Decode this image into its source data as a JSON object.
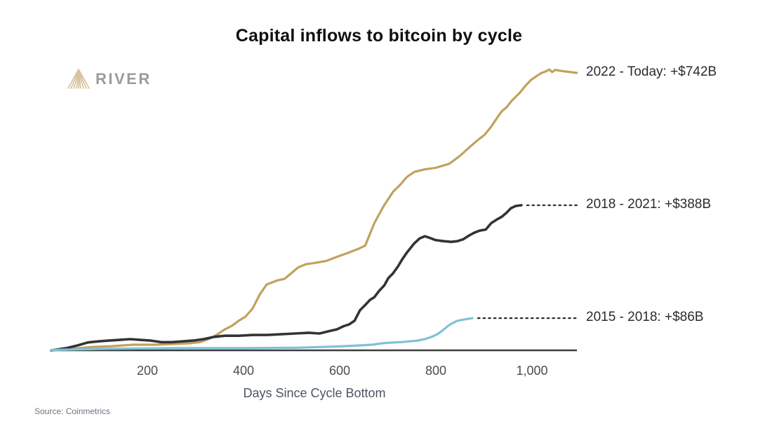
{
  "header": {
    "title": "Capital inflows to bitcoin by cycle"
  },
  "logo": {
    "brand": "RIVER",
    "icon": "river-mountain-icon",
    "icon_color": "#D8C3A1",
    "text_color": "#9b9b9b"
  },
  "footer": {
    "source": "Source: Coinmetrics"
  },
  "chart_data": {
    "type": "line",
    "title": "Capital inflows to bitcoin by cycle",
    "xlabel": "Days Since Cycle Bottom",
    "ylabel": "",
    "y_unit": "USD billions",
    "xlim": [
      0,
      1095
    ],
    "ylim": [
      0,
      780
    ],
    "grid": false,
    "legend_position": "right-of-line-ends",
    "axis_color": "#3d3d3d",
    "x_ticks": [
      {
        "label": "200",
        "day": 200
      },
      {
        "label": "400",
        "day": 400
      },
      {
        "label": "600",
        "day": 600
      },
      {
        "label": "800",
        "day": 800
      },
      {
        "label": "1,000",
        "day": 1000
      }
    ],
    "series": [
      {
        "name": "2022 - Today",
        "end_label": "2022 - Today: +$742B",
        "total_inflow_billions": 742,
        "color": "#C2A15D",
        "stroke_width": 3.2,
        "leader_dotted": false,
        "points": [
          [
            0,
            0
          ],
          [
            40,
            4
          ],
          [
            85,
            9
          ],
          [
            125,
            11
          ],
          [
            170,
            15
          ],
          [
            215,
            15
          ],
          [
            258,
            17
          ],
          [
            288,
            19
          ],
          [
            310,
            22
          ],
          [
            331,
            32
          ],
          [
            346,
            43
          ],
          [
            361,
            56
          ],
          [
            375,
            65
          ],
          [
            390,
            79
          ],
          [
            404,
            90
          ],
          [
            419,
            112
          ],
          [
            434,
            150
          ],
          [
            448,
            176
          ],
          [
            470,
            187
          ],
          [
            485,
            191
          ],
          [
            499,
            206
          ],
          [
            514,
            222
          ],
          [
            529,
            230
          ],
          [
            550,
            234
          ],
          [
            572,
            239
          ],
          [
            594,
            250
          ],
          [
            616,
            260
          ],
          [
            638,
            271
          ],
          [
            653,
            280
          ],
          [
            672,
            340
          ],
          [
            692,
            387
          ],
          [
            711,
            424
          ],
          [
            726,
            443
          ],
          [
            740,
            464
          ],
          [
            755,
            477
          ],
          [
            777,
            484
          ],
          [
            799,
            488
          ],
          [
            828,
            499
          ],
          [
            850,
            520
          ],
          [
            869,
            542
          ],
          [
            886,
            561
          ],
          [
            901,
            576
          ],
          [
            915,
            598
          ],
          [
            927,
            621
          ],
          [
            937,
            639
          ],
          [
            947,
            650
          ],
          [
            959,
            669
          ],
          [
            974,
            688
          ],
          [
            988,
            710
          ],
          [
            998,
            723
          ],
          [
            1010,
            734
          ],
          [
            1020,
            742
          ],
          [
            1029,
            746
          ],
          [
            1036,
            751
          ],
          [
            1042,
            744
          ],
          [
            1048,
            750
          ],
          [
            1057,
            748
          ],
          [
            1068,
            746
          ],
          [
            1080,
            744
          ],
          [
            1093,
            742
          ]
        ]
      },
      {
        "name": "2018 - 2021",
        "end_label": "2018 - 2021: +$388B",
        "total_inflow_billions": 388,
        "color": "#333333",
        "stroke_width": 3.6,
        "leader_dotted": true,
        "points": [
          [
            0,
            0
          ],
          [
            32,
            6
          ],
          [
            54,
            13
          ],
          [
            76,
            21
          ],
          [
            98,
            24
          ],
          [
            120,
            26
          ],
          [
            142,
            28
          ],
          [
            164,
            30
          ],
          [
            185,
            28
          ],
          [
            207,
            26
          ],
          [
            229,
            22
          ],
          [
            251,
            22
          ],
          [
            273,
            24
          ],
          [
            295,
            26
          ],
          [
            317,
            30
          ],
          [
            339,
            36
          ],
          [
            361,
            39
          ],
          [
            390,
            39
          ],
          [
            419,
            41
          ],
          [
            448,
            41
          ],
          [
            477,
            43
          ],
          [
            507,
            45
          ],
          [
            536,
            47
          ],
          [
            558,
            45
          ],
          [
            580,
            52
          ],
          [
            594,
            56
          ],
          [
            609,
            65
          ],
          [
            619,
            69
          ],
          [
            631,
            79
          ],
          [
            642,
            107
          ],
          [
            653,
            121
          ],
          [
            663,
            135
          ],
          [
            672,
            142
          ],
          [
            682,
            159
          ],
          [
            693,
            174
          ],
          [
            701,
            193
          ],
          [
            711,
            206
          ],
          [
            721,
            224
          ],
          [
            730,
            243
          ],
          [
            740,
            262
          ],
          [
            755,
            286
          ],
          [
            766,
            299
          ],
          [
            777,
            305
          ],
          [
            787,
            301
          ],
          [
            799,
            295
          ],
          [
            816,
            292
          ],
          [
            832,
            290
          ],
          [
            845,
            292
          ],
          [
            857,
            297
          ],
          [
            869,
            307
          ],
          [
            879,
            314
          ],
          [
            891,
            320
          ],
          [
            904,
            323
          ],
          [
            915,
            340
          ],
          [
            927,
            350
          ],
          [
            937,
            357
          ],
          [
            947,
            368
          ],
          [
            956,
            380
          ],
          [
            966,
            386
          ],
          [
            978,
            388
          ]
        ]
      },
      {
        "name": "2015 - 2018",
        "end_label": "2015 - 2018: +$86B",
        "total_inflow_billions": 86,
        "color": "#7FC1D7",
        "stroke_width": 3.2,
        "leader_dotted": true,
        "points": [
          [
            0,
            1
          ],
          [
            112,
            4
          ],
          [
            258,
            6
          ],
          [
            404,
            6
          ],
          [
            507,
            7
          ],
          [
            565,
            9
          ],
          [
            609,
            11
          ],
          [
            638,
            13
          ],
          [
            667,
            15
          ],
          [
            689,
            19
          ],
          [
            711,
            21
          ],
          [
            728,
            22
          ],
          [
            745,
            24
          ],
          [
            762,
            26
          ],
          [
            777,
            30
          ],
          [
            791,
            36
          ],
          [
            803,
            43
          ],
          [
            813,
            52
          ],
          [
            825,
            65
          ],
          [
            835,
            73
          ],
          [
            845,
            79
          ],
          [
            857,
            82
          ],
          [
            866,
            84
          ],
          [
            876,
            86
          ]
        ]
      }
    ]
  }
}
